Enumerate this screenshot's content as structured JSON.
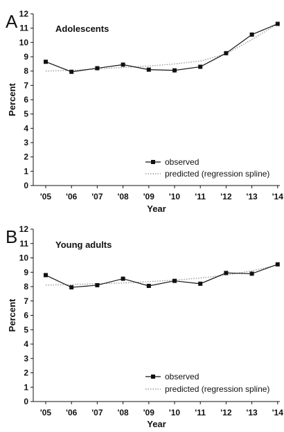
{
  "chart_data": [
    {
      "type": "line",
      "panel_label": "A",
      "title": "Adolescents",
      "xlabel": "Year",
      "ylabel": "Percent",
      "ylim": [
        0,
        12
      ],
      "yticks": [
        "0",
        "1",
        "2",
        "3",
        "4",
        "5",
        "6",
        "7",
        "8",
        "9",
        "10",
        "11",
        "12"
      ],
      "categories": [
        "'05",
        "'06",
        "'07",
        "'08",
        "'09",
        "'10",
        "'11",
        "'12",
        "'13",
        "'14"
      ],
      "series": [
        {
          "name": "observed",
          "style": "solid-square-markers",
          "values": [
            8.65,
            7.95,
            8.2,
            8.45,
            8.1,
            8.05,
            8.3,
            9.25,
            10.55,
            11.3
          ]
        },
        {
          "name": "predicted (regression spline)",
          "style": "dotted",
          "values": [
            8.0,
            8.05,
            8.15,
            8.25,
            8.35,
            8.5,
            8.7,
            9.2,
            10.2,
            11.3
          ]
        }
      ],
      "legend_position": "bottom-right",
      "grid": false
    },
    {
      "type": "line",
      "panel_label": "B",
      "title": "Young adults",
      "xlabel": "Year",
      "ylabel": "Percent",
      "ylim": [
        0,
        12
      ],
      "yticks": [
        "0",
        "1",
        "2",
        "3",
        "4",
        "5",
        "6",
        "7",
        "8",
        "9",
        "10",
        "11",
        "12"
      ],
      "categories": [
        "'05",
        "'06",
        "'07",
        "'08",
        "'09",
        "'10",
        "'11",
        "'12",
        "'13",
        "'14"
      ],
      "series": [
        {
          "name": "observed",
          "style": "solid-square-markers",
          "values": [
            8.8,
            7.95,
            8.1,
            8.55,
            8.05,
            8.4,
            8.2,
            8.95,
            8.9,
            9.55
          ]
        },
        {
          "name": "predicted (regression spline)",
          "style": "dotted",
          "values": [
            8.1,
            8.15,
            8.2,
            8.25,
            8.35,
            8.45,
            8.6,
            8.8,
            9.1,
            9.5
          ]
        }
      ],
      "legend_position": "bottom-right",
      "grid": false
    }
  ],
  "colors": {
    "observed": "#111111",
    "predicted": "#8a8a8a",
    "axis": "#111111"
  }
}
